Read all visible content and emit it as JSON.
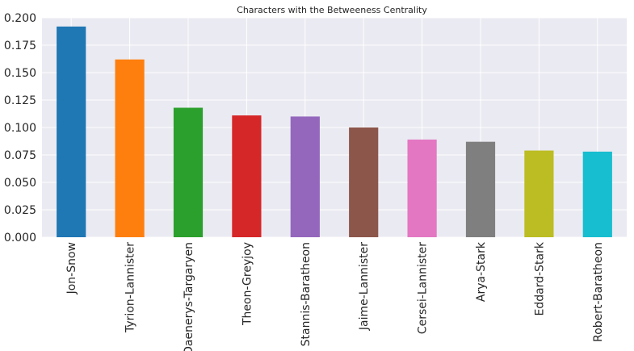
{
  "chart_data": {
    "type": "bar",
    "title": "Characters with the Betweeness Centrality",
    "xlabel": "",
    "ylabel": "",
    "ylim": [
      0,
      0.2
    ],
    "grid": true,
    "yticks": [
      "0.000",
      "0.025",
      "0.050",
      "0.075",
      "0.100",
      "0.125",
      "0.150",
      "0.175",
      "0.200"
    ],
    "ytick_values": [
      0,
      0.025,
      0.05,
      0.075,
      0.1,
      0.125,
      0.15,
      0.175,
      0.2
    ],
    "categories": [
      "Jon-Snow",
      "Tyrion-Lannister",
      "Daenerys-Targaryen",
      "Theon-Greyjoy",
      "Stannis-Baratheon",
      "Jaime-Lannister",
      "Cersei-Lannister",
      "Arya-Stark",
      "Eddard-Stark",
      "Robert-Baratheon"
    ],
    "values": [
      0.192,
      0.162,
      0.118,
      0.111,
      0.11,
      0.1,
      0.089,
      0.087,
      0.079,
      0.078
    ],
    "colors": [
      "#1f77b4",
      "#ff7f0e",
      "#2ca02c",
      "#d62728",
      "#9467bd",
      "#8c564b",
      "#e377c2",
      "#7f7f7f",
      "#bcbd22",
      "#17becf"
    ],
    "plot_background": "#eaeaf2"
  }
}
